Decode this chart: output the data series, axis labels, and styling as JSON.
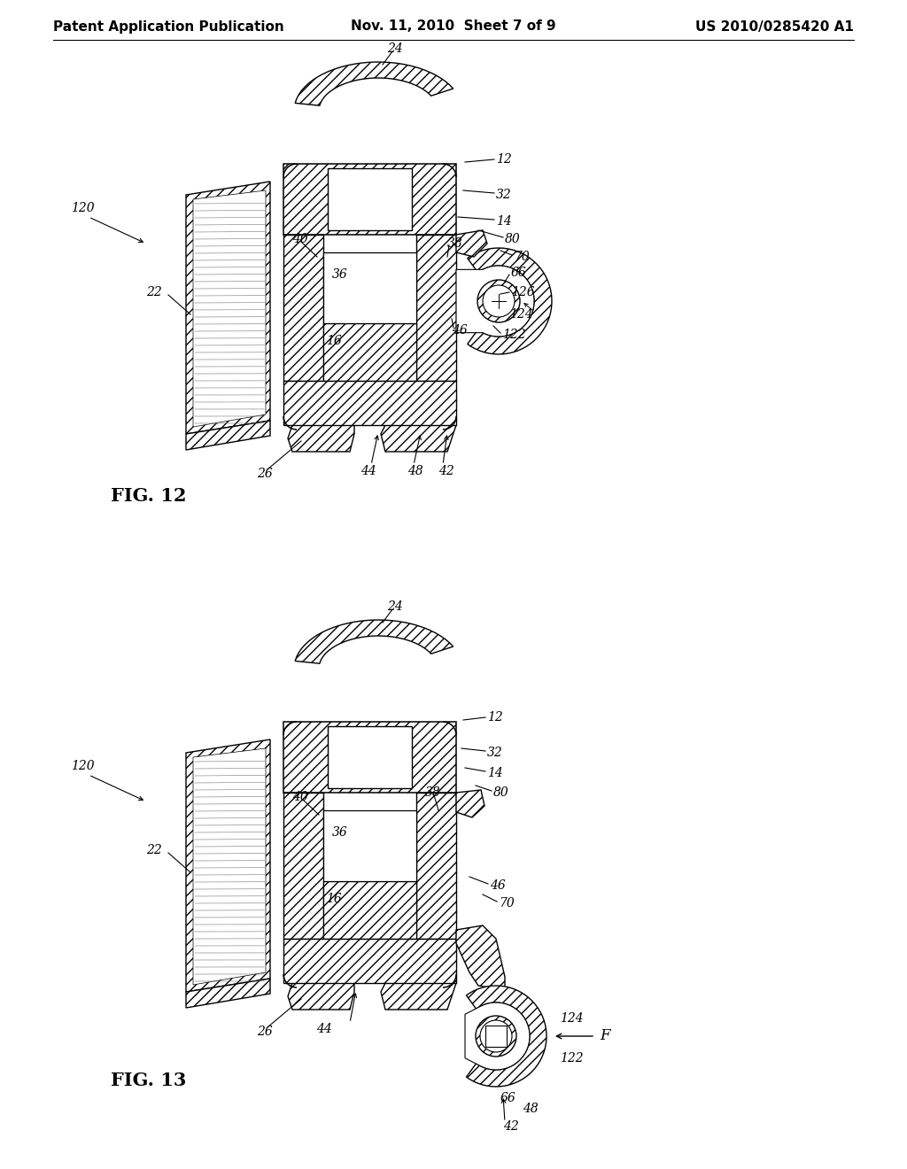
{
  "background_color": "#ffffff",
  "header_left": "Patent Application Publication",
  "header_center": "Nov. 11, 2010  Sheet 7 of 9",
  "header_right": "US 2010/0285420 A1",
  "fig12_label": "FIG. 12",
  "fig13_label": "FIG. 13",
  "header_fontsize": 11,
  "ref_fontsize": 10,
  "fig_label_fontsize": 15
}
